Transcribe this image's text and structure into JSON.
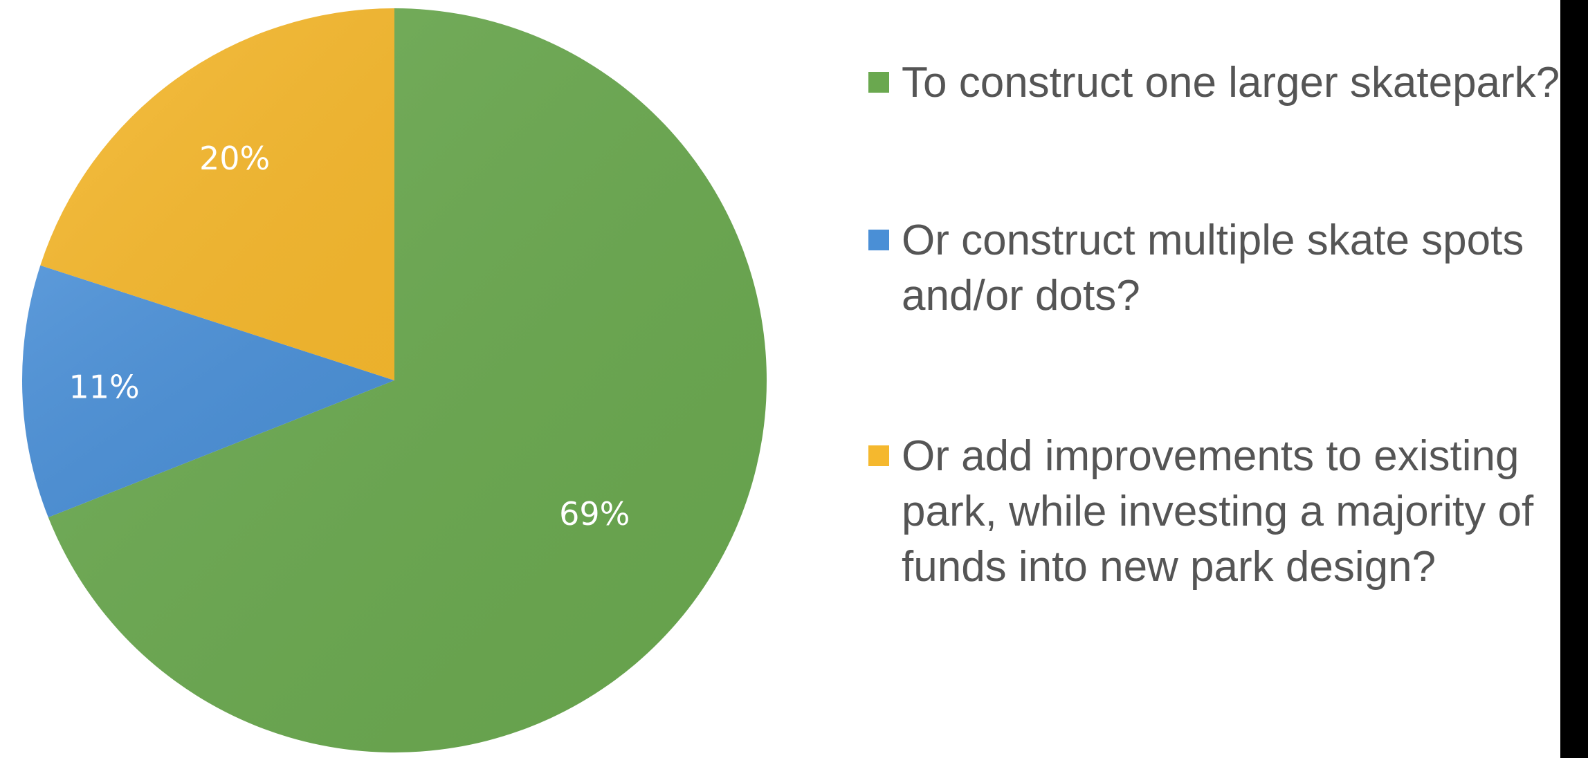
{
  "chart_data": {
    "type": "pie",
    "categories": [
      "To construct one larger skatepark?",
      "Or construct multiple skate spots and/or dots?",
      "Or add improvements to existing park, while investing a majority of funds into new park design?"
    ],
    "values": [
      69,
      11,
      20
    ],
    "data_labels": [
      "69%",
      "11%",
      "20%"
    ],
    "colors": [
      "#6aa84f",
      "#4a8fd6",
      "#f5b82e"
    ],
    "start_angle_deg": 0,
    "direction": "clockwise",
    "legend_position": "right",
    "title": ""
  },
  "legend": {
    "items": [
      {
        "label": "To construct one larger skatepark?",
        "color": "#6aa84f"
      },
      {
        "label": "Or construct multiple skate spots and/or dots?",
        "color": "#4a8fd6"
      },
      {
        "label": "Or add improvements to existing park, while investing a majority of funds into new park design?",
        "color": "#f5b82e"
      }
    ]
  }
}
